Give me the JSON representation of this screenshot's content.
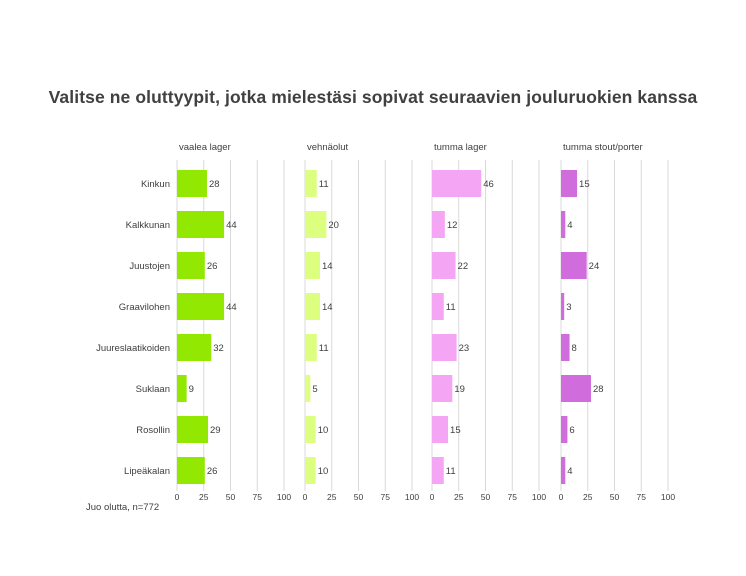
{
  "chart_data": {
    "type": "bar",
    "orientation": "horizontal",
    "title": "Valitse ne oluttyypit, jotka mielestäsi sopivat  seuraavien jouluruokien kanssa",
    "categories": [
      "Kinkun",
      "Kalkkunan",
      "Juustojen",
      "Graavilohen",
      "Juureslaatikoiden",
      "Suklaan",
      "Rosollin",
      "Lipeäkalan"
    ],
    "panels": [
      {
        "name": "vaalea lager",
        "color": "#92E800",
        "values": [
          28,
          44,
          26,
          44,
          32,
          9,
          29,
          26
        ]
      },
      {
        "name": "vehnäolut",
        "color": "#DDFF80",
        "values": [
          11,
          20,
          14,
          14,
          11,
          5,
          10,
          10
        ]
      },
      {
        "name": "tumma lager",
        "color": "#F4A5F4",
        "values": [
          46,
          12,
          22,
          11,
          23,
          19,
          15,
          11
        ]
      },
      {
        "name": "tumma stout/porter",
        "color": "#D06CDC",
        "values": [
          15,
          4,
          24,
          3,
          8,
          28,
          6,
          4
        ]
      }
    ],
    "xlim": [
      0,
      100
    ],
    "xticks": [
      "0",
      "25",
      "50",
      "75",
      "100"
    ],
    "grid": true,
    "data_labels": true
  },
  "footnote": "Juo olutta, n=772"
}
